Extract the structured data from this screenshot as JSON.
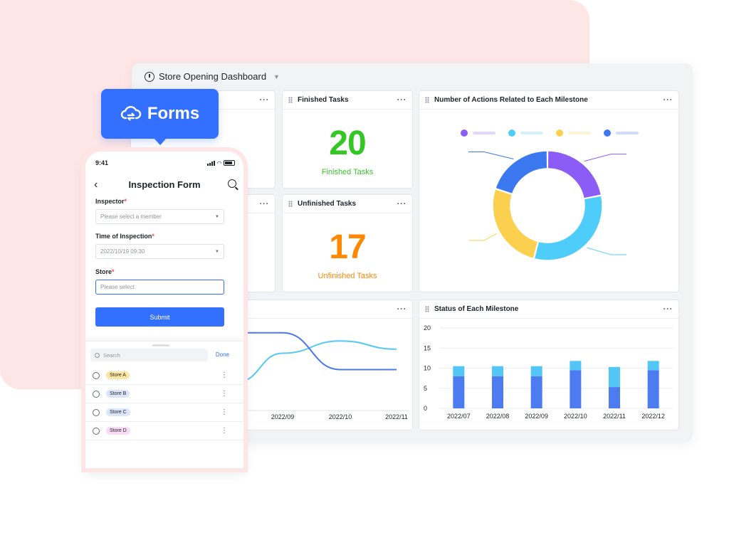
{
  "dashboard": {
    "title": "Store Opening Dashboard",
    "more": "···"
  },
  "cards": {
    "finished": {
      "title": "Finished Tasks",
      "value": "20",
      "label": "Finished Tasks",
      "color": "#34c724"
    },
    "unfinished": {
      "title": "Unfinished Tasks",
      "value": "17",
      "label": "Unfinished Tasks",
      "color": "#ff8800"
    },
    "milestone_actions": {
      "title": "Number of Actions Related to Each Milestone"
    },
    "milestone_status": {
      "title": "Status of Each Milestone"
    }
  },
  "forms_badge": {
    "label": "Forms",
    "icon": "cloud-sync-icon"
  },
  "phone": {
    "time": "9:41",
    "title": "Inspection Form",
    "fields": [
      {
        "label": "Inspector",
        "required": "*",
        "value": "Please select a member"
      },
      {
        "label": "Time of Inspection",
        "required": "*",
        "value": "2022/10/19 09:30"
      },
      {
        "label": "Store",
        "required": "*",
        "value": "Please select"
      }
    ],
    "submit": "Submit",
    "sheet": {
      "search_placeholder": "Search",
      "done": "Done",
      "stores": [
        {
          "label": "Store A",
          "color": "#fbe7a3"
        },
        {
          "label": "Store B",
          "color": "#dbe6fd"
        },
        {
          "label": "Store C",
          "color": "#dbe6fd"
        },
        {
          "label": "Store D",
          "color": "#f7dcf4"
        }
      ]
    }
  },
  "chart_data": [
    {
      "type": "pie",
      "title": "Number of Actions Related to Each Milestone",
      "values": [
        22,
        32,
        26,
        20
      ],
      "colors": [
        "#8c5cf6",
        "#4fcdfa",
        "#fcd04f",
        "#3c78f0"
      ],
      "legend": "top"
    },
    {
      "type": "line",
      "x": [
        "2022/09",
        "2022/10",
        "2022/11"
      ],
      "series": [
        {
          "values": [
            14,
            17,
            15
          ],
          "color": "#54c8f5"
        },
        {
          "values": [
            19,
            10,
            10
          ],
          "color": "#4d78eb"
        }
      ]
    },
    {
      "type": "bar",
      "title": "Status of Each Milestone",
      "categories": [
        "2022/07",
        "2022/08",
        "2022/09",
        "2022/10",
        "2022/11",
        "2022/12"
      ],
      "series": [
        {
          "values": [
            8,
            8,
            8,
            9.5,
            5.3,
            9.5
          ],
          "color": "#4d7cf0"
        },
        {
          "values": [
            2.5,
            2.5,
            2.5,
            2.3,
            5,
            2.3
          ],
          "color": "#52c6f5"
        }
      ],
      "ylim": [
        0,
        20
      ],
      "yticks": [
        0,
        5,
        10,
        15,
        20
      ],
      "grid": true
    }
  ]
}
